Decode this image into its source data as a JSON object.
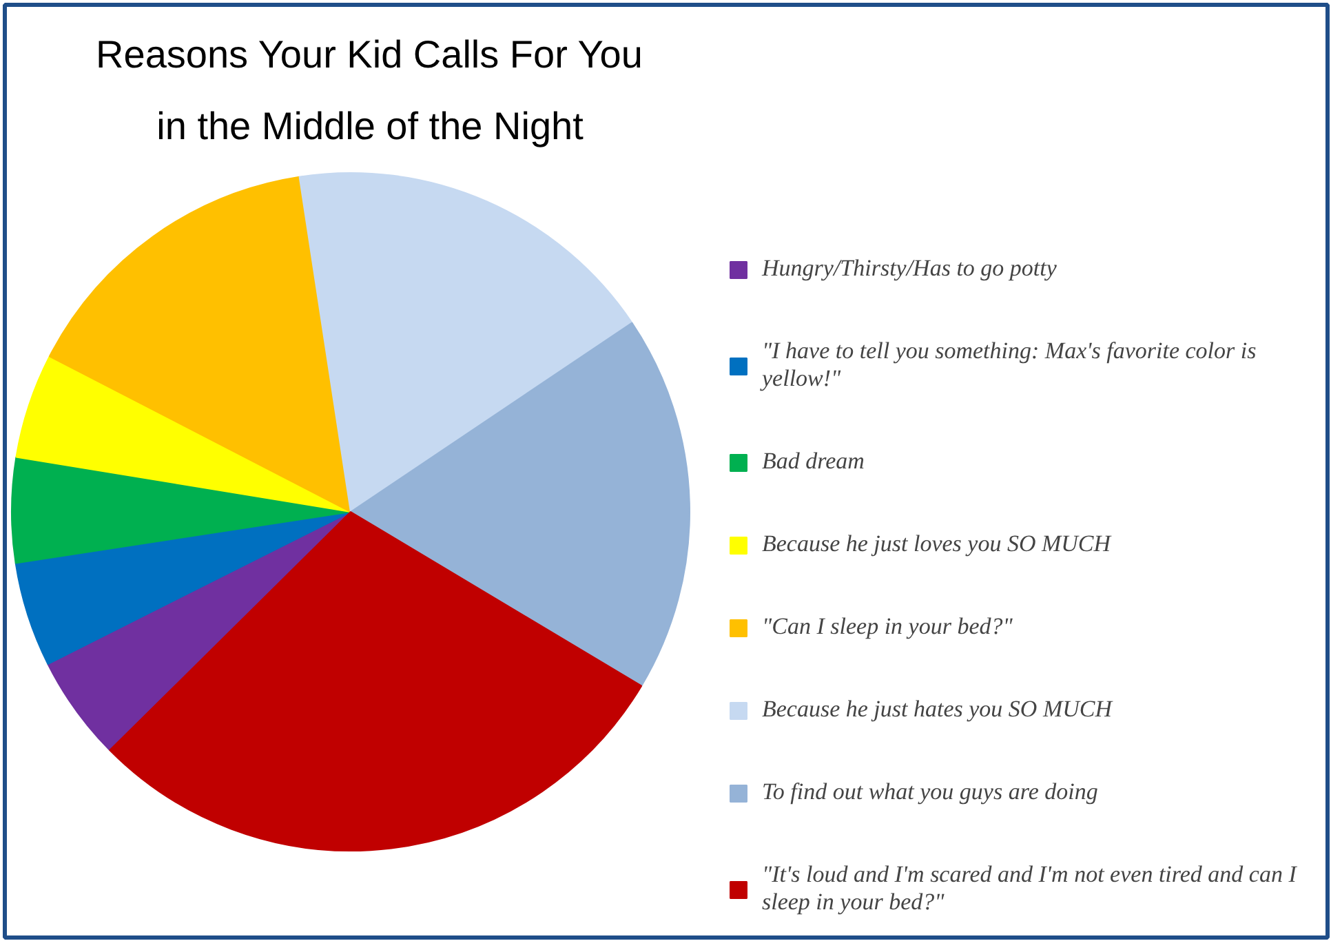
{
  "chart_data": {
    "type": "pie",
    "title": "Reasons Your Kid Calls For You\nin the Middle of the Night",
    "categories": [
      "Hungry/Thirsty/Has to go potty",
      "\"I have to tell you something: Max's favorite color is yellow!\"",
      "Bad dream",
      "Because he just loves you SO MUCH",
      "\"Can I sleep in your bed?\"",
      "Because he just hates you SO MUCH",
      "To find out what you guys are doing",
      "\"It's loud and I'm scared and I'm not even tired and can I sleep in your bed?\""
    ],
    "values": [
      5,
      5,
      5,
      5,
      15,
      18,
      18,
      29
    ],
    "colors": [
      "#7030a0",
      "#0070c0",
      "#00b050",
      "#ffff00",
      "#ffc000",
      "#c6d9f1",
      "#95b3d7",
      "#c00000"
    ],
    "legend": "right"
  }
}
